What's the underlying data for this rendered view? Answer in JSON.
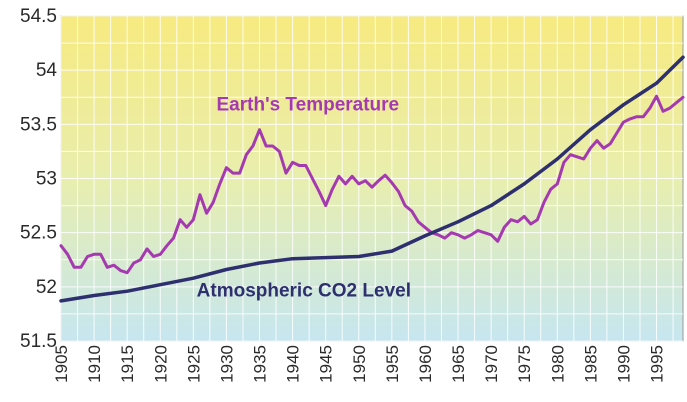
{
  "chart_data": {
    "type": "line",
    "title": "",
    "xlabel": "",
    "ylabel": "",
    "xlim": [
      1905,
      1999
    ],
    "ylim": [
      51.5,
      54.5
    ],
    "grid": true,
    "background": "vertical gradient from yellow (top) to light blue (bottom)",
    "y_ticks": [
      "51.5",
      "52",
      "52.5",
      "53",
      "53.5",
      "54",
      "54.5"
    ],
    "x_ticks": [
      "1905",
      "1910",
      "1915",
      "1920",
      "1925",
      "1930",
      "1935",
      "1940",
      "1945",
      "1950",
      "1955",
      "1960",
      "1965",
      "1970",
      "1975",
      "1980",
      "1985",
      "1990",
      "1995"
    ],
    "series": [
      {
        "name": "Earth's Temperature",
        "color": "#a53ab0",
        "x": [
          1905,
          1906,
          1907,
          1908,
          1909,
          1910,
          1911,
          1912,
          1913,
          1914,
          1915,
          1916,
          1917,
          1918,
          1919,
          1920,
          1921,
          1922,
          1923,
          1924,
          1925,
          1926,
          1927,
          1928,
          1929,
          1930,
          1931,
          1932,
          1933,
          1934,
          1935,
          1936,
          1937,
          1938,
          1939,
          1940,
          1941,
          1942,
          1943,
          1944,
          1945,
          1946,
          1947,
          1948,
          1949,
          1950,
          1951,
          1952,
          1953,
          1954,
          1955,
          1956,
          1957,
          1958,
          1959,
          1960,
          1961,
          1962,
          1963,
          1964,
          1965,
          1966,
          1967,
          1968,
          1969,
          1970,
          1971,
          1972,
          1973,
          1974,
          1975,
          1976,
          1977,
          1978,
          1979,
          1980,
          1981,
          1982,
          1983,
          1984,
          1985,
          1986,
          1987,
          1988,
          1989,
          1990,
          1991,
          1992,
          1993,
          1994,
          1995,
          1996,
          1997,
          1998,
          1999
        ],
        "y": [
          52.38,
          52.3,
          52.18,
          52.18,
          52.28,
          52.3,
          52.3,
          52.18,
          52.2,
          52.15,
          52.13,
          52.22,
          52.25,
          52.35,
          52.28,
          52.3,
          52.38,
          52.45,
          52.62,
          52.55,
          52.62,
          52.85,
          52.68,
          52.78,
          52.95,
          53.1,
          53.05,
          53.05,
          53.22,
          53.3,
          53.45,
          53.3,
          53.3,
          53.25,
          53.05,
          53.15,
          53.12,
          53.12,
          53.0,
          52.88,
          52.75,
          52.9,
          53.02,
          52.95,
          53.02,
          52.95,
          52.98,
          52.92,
          52.98,
          53.03,
          52.96,
          52.88,
          52.75,
          52.7,
          52.6,
          52.55,
          52.5,
          52.48,
          52.45,
          52.5,
          52.48,
          52.45,
          52.48,
          52.52,
          52.5,
          52.48,
          52.42,
          52.55,
          52.62,
          52.6,
          52.65,
          52.58,
          52.62,
          52.78,
          52.9,
          52.95,
          53.15,
          53.22,
          53.2,
          53.18,
          53.28,
          53.35,
          53.28,
          53.32,
          53.42,
          53.52,
          53.55,
          53.57,
          53.57,
          53.65,
          53.76,
          53.62,
          53.65,
          53.7,
          53.75
        ]
      },
      {
        "name": "Atmospheric CO2 Level",
        "color": "#2e2f6e",
        "x": [
          1905,
          1910,
          1915,
          1920,
          1925,
          1930,
          1935,
          1940,
          1945,
          1950,
          1955,
          1960,
          1965,
          1970,
          1975,
          1980,
          1985,
          1990,
          1995,
          1999
        ],
        "y": [
          51.87,
          51.92,
          51.96,
          52.02,
          52.08,
          52.16,
          52.22,
          52.26,
          52.27,
          52.28,
          52.33,
          52.47,
          52.6,
          52.75,
          52.95,
          53.18,
          53.45,
          53.68,
          53.88,
          54.12
        ]
      }
    ]
  }
}
